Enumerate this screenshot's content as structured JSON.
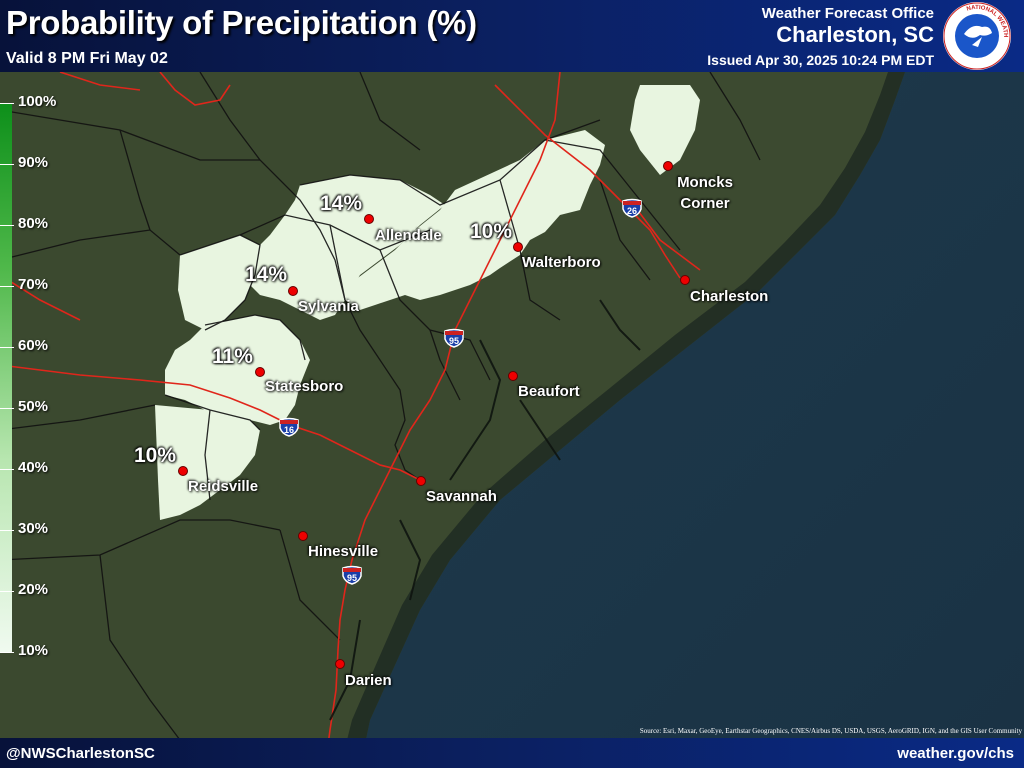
{
  "header": {
    "title": "Probability of Precipitation (%)",
    "valid": "Valid 8 PM Fri May 02",
    "wfo": "Weather Forecast Office",
    "office": "Charleston, SC",
    "issued": "Issued Apr 30, 2025 10:24 PM EDT",
    "logo_text": "NATIONAL WEATHER SERVICE"
  },
  "legend": {
    "labels": [
      "100%",
      "90%",
      "80%",
      "70%",
      "60%",
      "50%",
      "40%",
      "30%",
      "20%",
      "10%"
    ]
  },
  "cities": [
    {
      "key": "allendale",
      "name": "Allendale"
    },
    {
      "key": "walterboro",
      "name": "Walterboro"
    },
    {
      "key": "moncks",
      "name": "Moncks Corner"
    },
    {
      "key": "charleston",
      "name": "Charleston"
    },
    {
      "key": "sylvania",
      "name": "Sylvania"
    },
    {
      "key": "statesboro",
      "name": "Statesboro"
    },
    {
      "key": "beaufort",
      "name": "Beaufort"
    },
    {
      "key": "reidsville",
      "name": "Reidsville"
    },
    {
      "key": "savannah",
      "name": "Savannah"
    },
    {
      "key": "hinesville",
      "name": "Hinesville"
    },
    {
      "key": "darien",
      "name": "Darien"
    }
  ],
  "pop_values": {
    "allendale": "14%",
    "walterboro": "10%",
    "sylvania": "14%",
    "statesboro": "11%",
    "reidsville": "10%"
  },
  "highways": {
    "i95_north": "95",
    "i95_south": "95",
    "i26": "26",
    "i16": "16"
  },
  "footer": {
    "handle": "@NWSCharlestonSC",
    "site": "weather.gov/chs",
    "source": "Source: Esri, Maxar, GeoEye, Earthstar Geographics, CNES/Airbus DS, USDA, USGS, AeroGRID, IGN, and the GIS User Community"
  },
  "colors": {
    "land": "#3d4a33",
    "ocean": "#1c3448",
    "pop_area": "#eaf6e2",
    "roads": "#e0261b",
    "county_lines": "#111111",
    "header_bg": "#0b1f5e"
  }
}
